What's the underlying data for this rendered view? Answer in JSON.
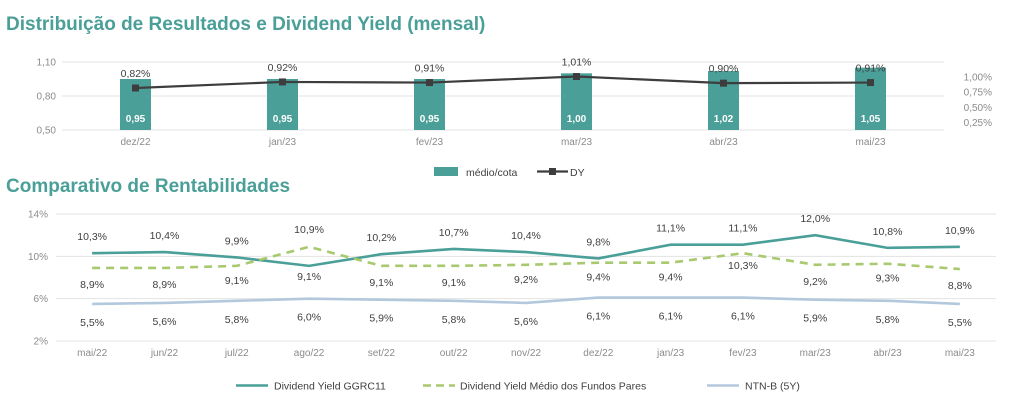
{
  "titles": {
    "chart1": "Distribuição de Resultados e Dividend Yield (mensal)",
    "chart2": "Comparativo de Rentabilidades"
  },
  "chart_data": [
    {
      "type": "bar",
      "title": "Distribuição de Resultados e Dividend Yield (mensal)",
      "categories": [
        "dez/22",
        "jan/23",
        "fev/23",
        "mar/23",
        "abr/23",
        "mai/23"
      ],
      "series": [
        {
          "name": "médio/cota",
          "type": "bar",
          "axis": "left",
          "color": "#4a9f98",
          "values": [
            0.95,
            0.95,
            0.95,
            1.0,
            1.02,
            1.05
          ],
          "labels": [
            "0,95",
            "0,95",
            "0,95",
            "1,00",
            "1,02",
            "1,05"
          ]
        },
        {
          "name": "DY",
          "type": "line",
          "axis": "right",
          "color": "#3d3d3d",
          "values": [
            0.82,
            0.92,
            0.91,
            1.01,
            0.9,
            0.91
          ],
          "labels": [
            "0,82%",
            "0,92%",
            "0,91%",
            "1,01%",
            "0,90%",
            "0,91%"
          ]
        }
      ],
      "left_axis": {
        "ticks": [
          "0,50",
          "0,80",
          "1,10"
        ],
        "tick_values": [
          0.5,
          0.8,
          1.1
        ],
        "ylim": [
          0.5,
          1.1
        ]
      },
      "right_axis": {
        "ticks": [
          "0,25%",
          "0,50%",
          "0,75%",
          "1,00%"
        ],
        "tick_values": [
          0.25,
          0.5,
          0.75,
          1.0
        ],
        "ylim": [
          0.125,
          1.25
        ]
      },
      "grid": true,
      "legend": "bottom"
    },
    {
      "type": "line",
      "title": "Comparativo de Rentabilidades",
      "categories": [
        "mai/22",
        "jun/22",
        "jul/22",
        "ago/22",
        "set/22",
        "out/22",
        "nov/22",
        "dez/22",
        "jan/23",
        "fev/23",
        "mar/23",
        "abr/23",
        "mai/23"
      ],
      "series": [
        {
          "name": "Dividend Yield GGRC11",
          "style": "solid",
          "color": "#4a9f98",
          "values": [
            10.3,
            10.4,
            9.9,
            9.1,
            10.2,
            10.7,
            10.4,
            9.8,
            11.1,
            11.1,
            12.0,
            10.8,
            10.9
          ],
          "labels": [
            "10,3%",
            "10,4%",
            "9,9%",
            "9,1%",
            "10,2%",
            "10,7%",
            "10,4%",
            "9,8%",
            "11,1%",
            "11,1%",
            "12,0%",
            "10,8%",
            "10,9%"
          ]
        },
        {
          "name": "Dividend Yield Médio dos Fundos Pares",
          "style": "dashed",
          "color": "#a8c96e",
          "values": [
            8.9,
            8.9,
            9.1,
            10.9,
            9.1,
            9.1,
            9.2,
            9.4,
            9.4,
            10.3,
            9.2,
            9.3,
            8.8
          ],
          "labels": [
            "8,9%",
            "8,9%",
            "9,1%",
            "10,9%",
            "9,1%",
            "9,1%",
            "9,2%",
            "9,4%",
            "9,4%",
            "10,3%",
            "9,2%",
            "9,3%",
            "8,8%"
          ]
        },
        {
          "name": "NTN-B (5Y)",
          "style": "solid",
          "color": "#b3c8dd",
          "values": [
            5.5,
            5.6,
            5.8,
            6.0,
            5.9,
            5.8,
            5.6,
            6.1,
            6.1,
            6.1,
            5.9,
            5.8,
            5.5
          ],
          "labels": [
            "5,5%",
            "5,6%",
            "5,8%",
            "6,0%",
            "5,9%",
            "5,8%",
            "5,6%",
            "6,1%",
            "6,1%",
            "6,1%",
            "5,9%",
            "5,8%",
            "5,5%"
          ]
        }
      ],
      "y_axis": {
        "ticks": [
          "2%",
          "6%",
          "10%",
          "14%"
        ],
        "tick_values": [
          2,
          6,
          10,
          14
        ],
        "ylim": [
          2,
          14
        ]
      },
      "grid": true,
      "legend": "bottom"
    }
  ]
}
